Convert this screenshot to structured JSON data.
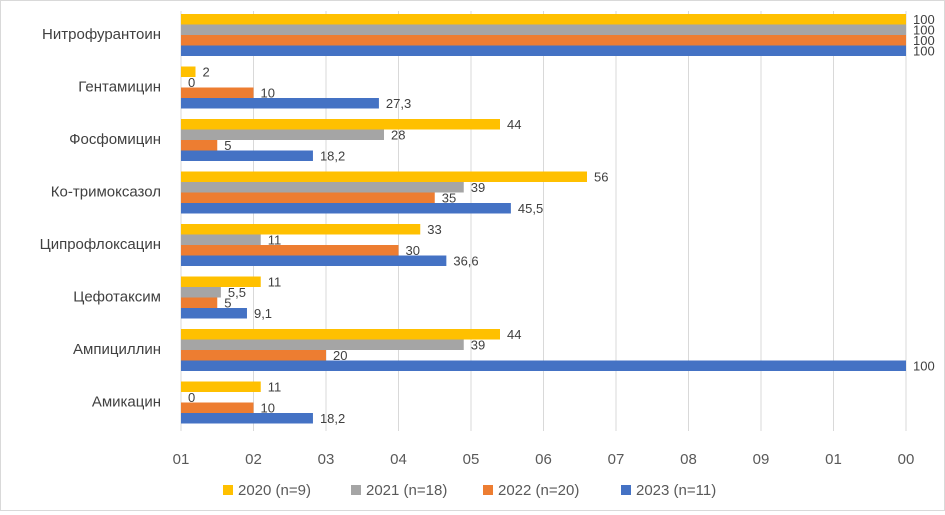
{
  "chart_data": {
    "type": "bar",
    "orientation": "horizontal",
    "categories": [
      "Нитрофурантоин",
      "Гентамицин",
      "Фосфомицин",
      "Ко-тримоксазол",
      "Ципрофлоксацин",
      "Цефотаксим",
      "Ампициллин",
      "Амикацин"
    ],
    "series": [
      {
        "name": "2020 (n=9)",
        "color": "#FFC000",
        "values": [
          100,
          2,
          44,
          56,
          33,
          11,
          44,
          11
        ],
        "labels": [
          "100",
          "2",
          "44",
          "56",
          "33",
          "11",
          "44",
          "11"
        ]
      },
      {
        "name": "2021 (n=18)",
        "color": "#A5A5A5",
        "values": [
          100,
          0,
          28,
          39,
          11,
          5.5,
          39,
          0
        ],
        "labels": [
          "100",
          "0",
          "28",
          "39",
          "11",
          "5,5",
          "39",
          "0"
        ]
      },
      {
        "name": "2022 (n=20)",
        "color": "#ED7D31",
        "values": [
          100,
          10,
          5,
          35,
          30,
          5,
          20,
          10
        ],
        "labels": [
          "100",
          "10",
          "5",
          "35",
          "30",
          "5",
          "20",
          "10"
        ]
      },
      {
        "name": "2023 (n=11)",
        "color": "#4472C4",
        "values": [
          100,
          27.3,
          18.2,
          45.5,
          36.6,
          9.1,
          100,
          18.2
        ],
        "labels": [
          "100",
          "27,3",
          "18,2",
          "45,5",
          "36,6",
          "9,1",
          "100",
          "18,2"
        ]
      }
    ],
    "xlim": [
      0,
      100
    ],
    "xticks": [
      0,
      10,
      20,
      30,
      40,
      50,
      60,
      70,
      80,
      90,
      100
    ],
    "xtick_labels": [
      "01",
      "02",
      "03",
      "04",
      "05",
      "06",
      "07",
      "08",
      "09",
      "01",
      "00"
    ],
    "grid": true,
    "legend_position": "bottom"
  }
}
